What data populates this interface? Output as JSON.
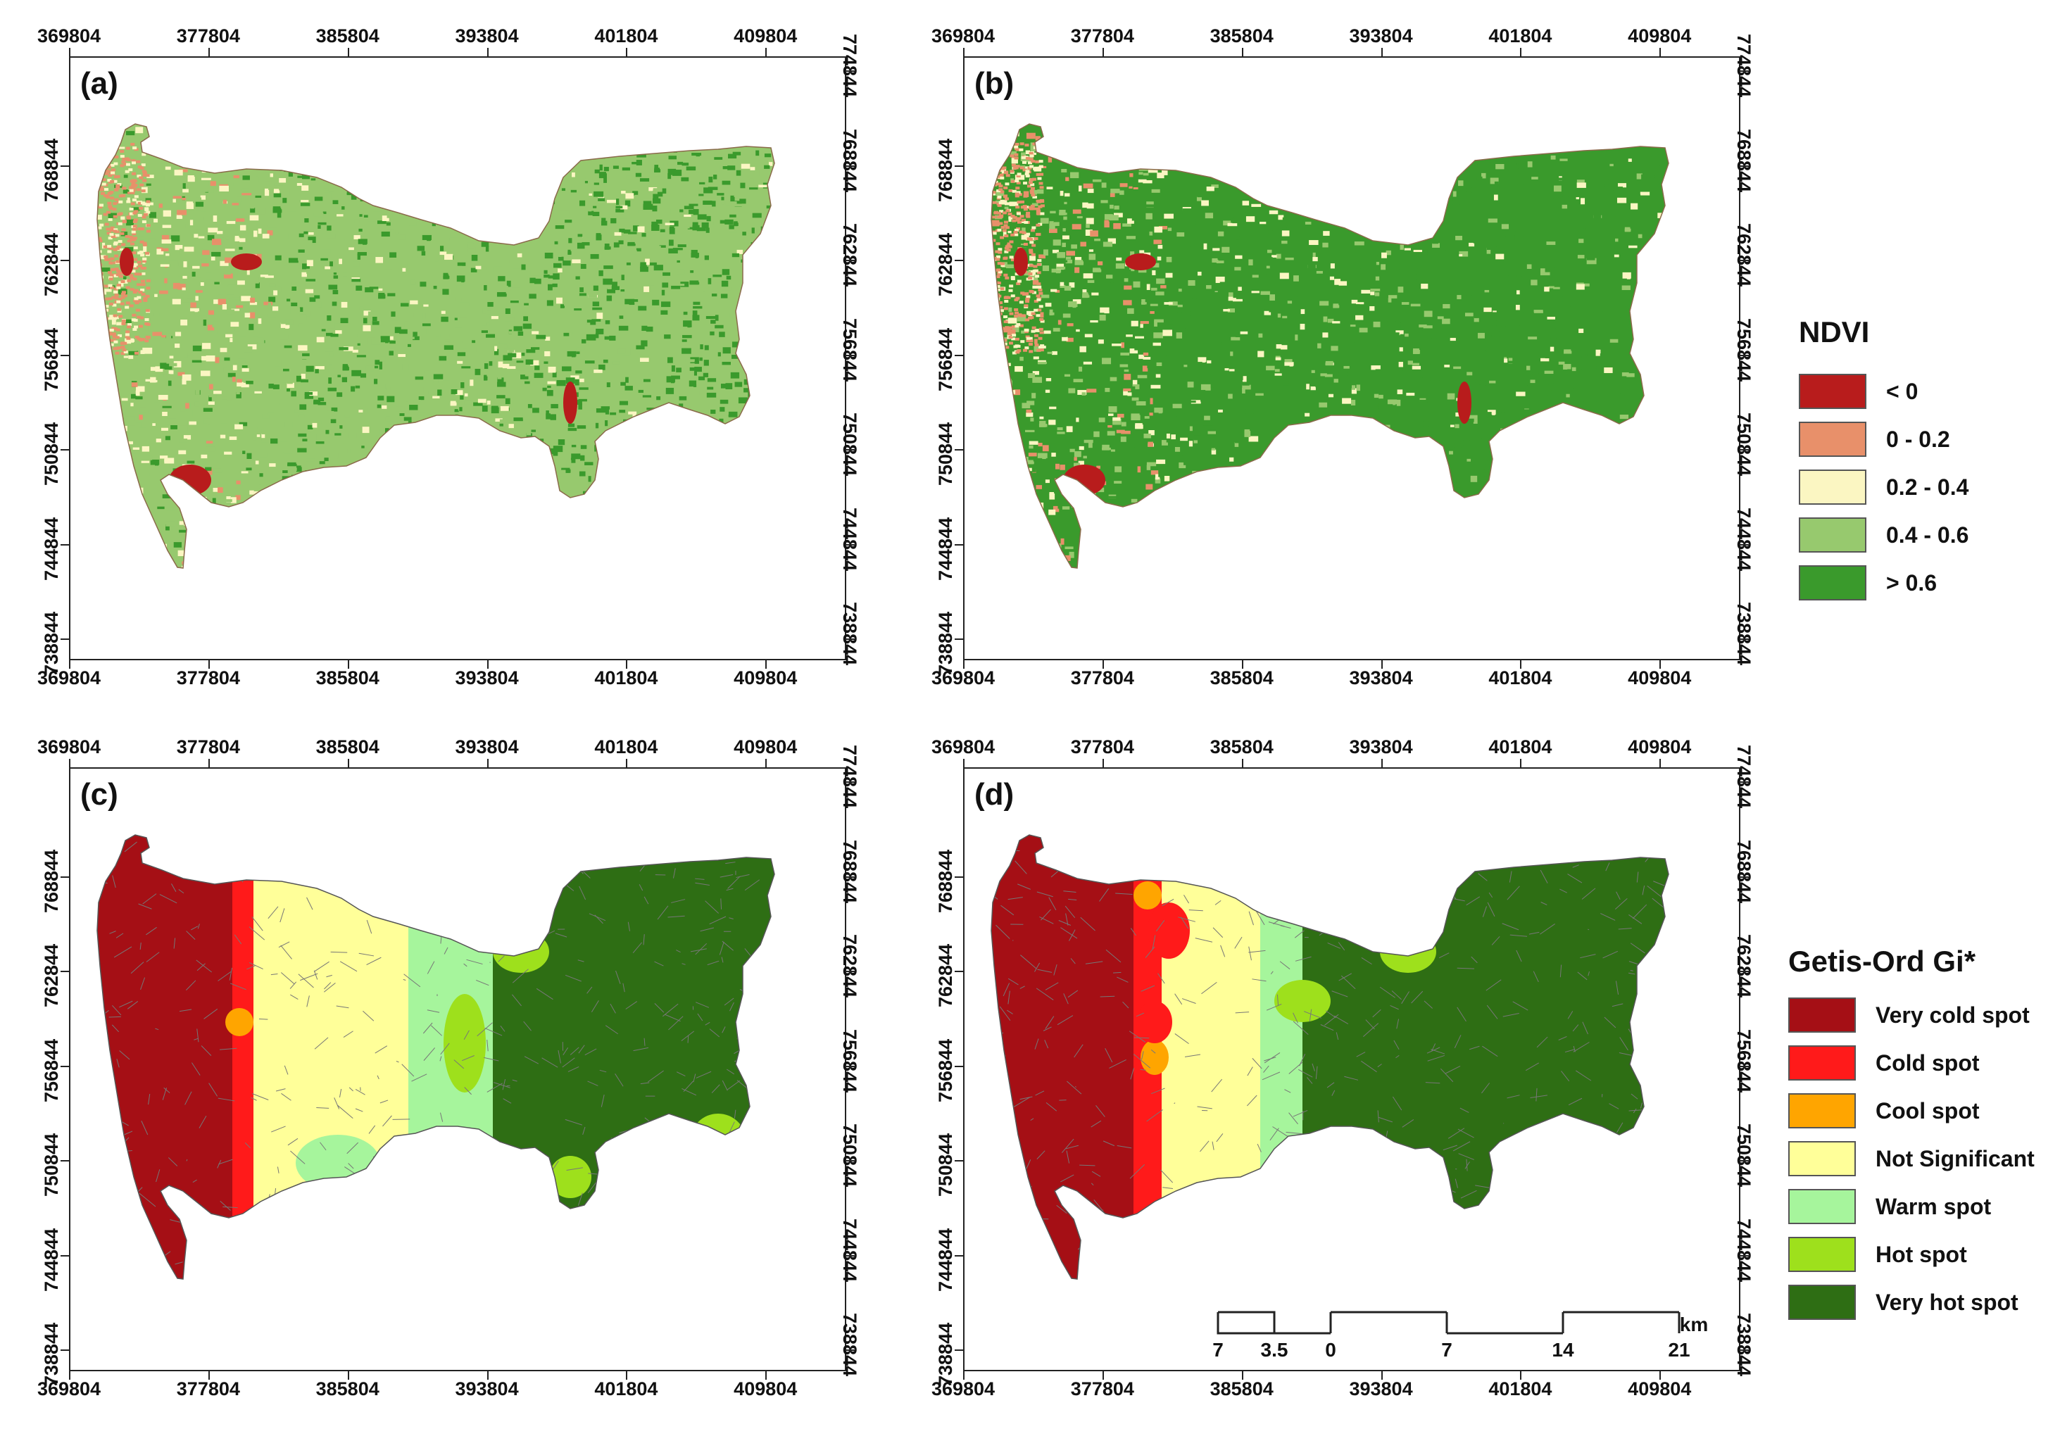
{
  "panels": [
    {
      "label": "(a)",
      "type": "ndvi",
      "year_variant": "a"
    },
    {
      "label": "(b)",
      "type": "ndvi",
      "year_variant": "b"
    },
    {
      "label": "(c)",
      "type": "gi",
      "year_variant": "c"
    },
    {
      "label": "(d)",
      "type": "gi",
      "year_variant": "d"
    }
  ],
  "axes": {
    "x_ticks": [
      "369804",
      "377804",
      "385804",
      "393804",
      "401804",
      "409804"
    ],
    "y_ticks": [
      "774844",
      "768844",
      "762844",
      "756844",
      "750844",
      "744844",
      "738844"
    ]
  },
  "ndvi_legend": {
    "title": "NDVI",
    "items": [
      {
        "label": "< 0",
        "color": "#b81c1c"
      },
      {
        "label": "0 - 0.2",
        "color": "#e8906a"
      },
      {
        "label": "0.2 - 0.4",
        "color": "#fbf6c2"
      },
      {
        "label": "0.4 - 0.6",
        "color": "#97c96e"
      },
      {
        "label": "> 0.6",
        "color": "#3a9a2c"
      }
    ]
  },
  "gi_legend": {
    "title": "Getis-Ord Gi*",
    "items": [
      {
        "label": "Very cold spot",
        "color": "#a50f15"
      },
      {
        "label": "Cold spot",
        "color": "#ff1a1a"
      },
      {
        "label": "Cool spot",
        "color": "#ffa500"
      },
      {
        "label": "Not Significant",
        "color": "#ffff99"
      },
      {
        "label": "Warm spot",
        "color": "#a6f59c"
      },
      {
        "label": "Hot spot",
        "color": "#9ee01c"
      },
      {
        "label": "Very hot spot",
        "color": "#2e6e14"
      }
    ]
  },
  "scale_bar": {
    "unit": "km",
    "labels": [
      "7",
      "3.5",
      "0",
      "7",
      "14",
      "21"
    ]
  }
}
